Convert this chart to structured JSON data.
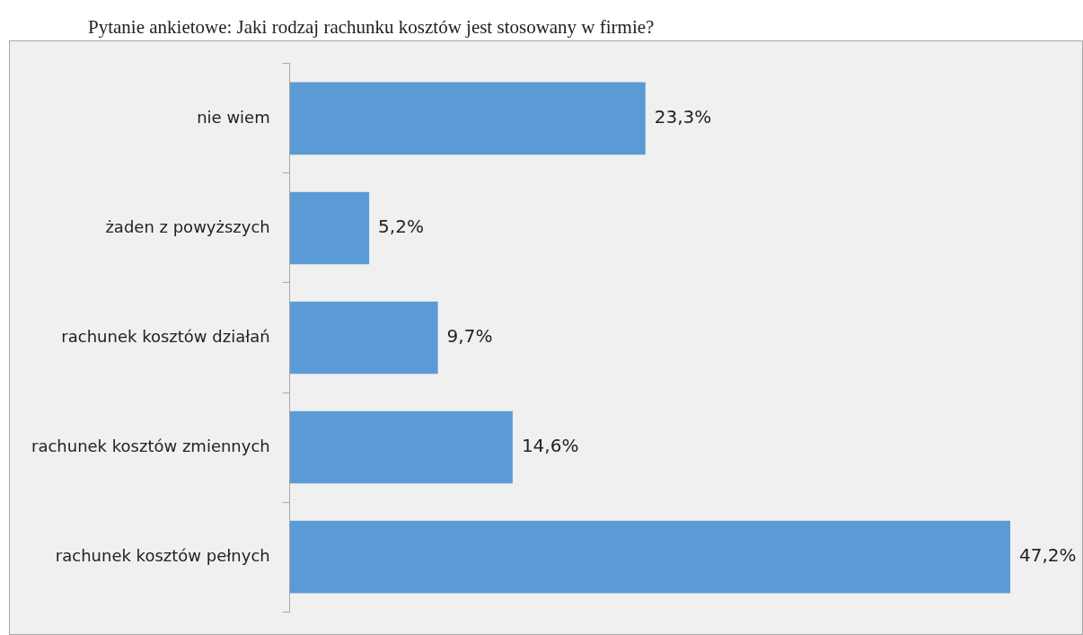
{
  "chart_data": {
    "type": "bar",
    "orientation": "horizontal",
    "title": "Pytanie ankietowe: Jaki rodzaj rachunku kosztów jest stosowany w firmie?",
    "categories": [
      "nie wiem",
      "żaden z powyższych",
      "rachunek kosztów działań",
      "rachunek kosztów zmiennych",
      "rachunek kosztów pełnych"
    ],
    "values": [
      23.3,
      5.2,
      9.7,
      14.6,
      47.2
    ],
    "value_labels": [
      "23,3%",
      "5,2%",
      "9,7%",
      "14,6%",
      "47,2%"
    ],
    "color": "#5b9bd5",
    "tick_labels": "y"
  }
}
